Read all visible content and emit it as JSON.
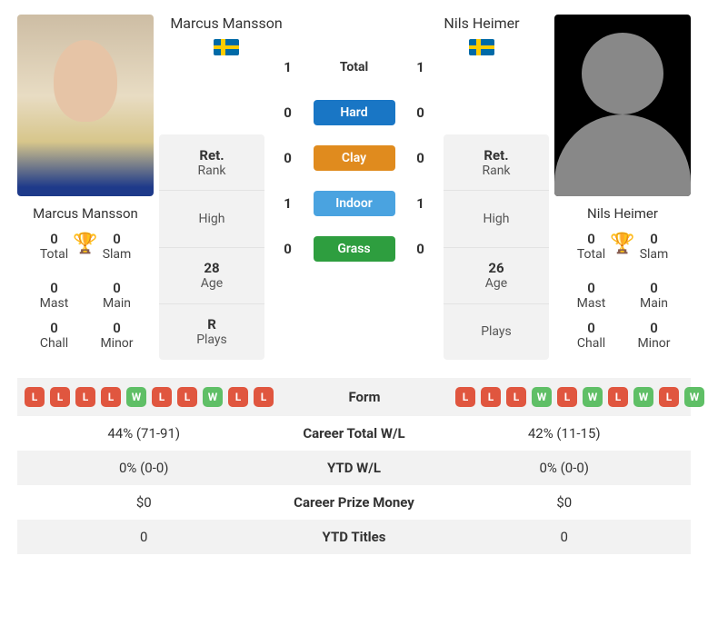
{
  "players": {
    "p1": {
      "name": "Marcus Mansson",
      "country": "SE",
      "titles": {
        "total": "0",
        "slam": "0",
        "mast": "0",
        "main": "0",
        "chall": "0",
        "minor": "0"
      },
      "stats": {
        "rank_val": "Ret.",
        "rank_lbl": "Rank",
        "high_val": "",
        "high_lbl": "High",
        "age_val": "28",
        "age_lbl": "Age",
        "plays_val": "R",
        "plays_lbl": "Plays"
      },
      "form": [
        "L",
        "L",
        "L",
        "L",
        "W",
        "L",
        "L",
        "W",
        "L",
        "L"
      ]
    },
    "p2": {
      "name": "Nils Heimer",
      "country": "SE",
      "titles": {
        "total": "0",
        "slam": "0",
        "mast": "0",
        "main": "0",
        "chall": "0",
        "minor": "0"
      },
      "stats": {
        "rank_val": "Ret.",
        "rank_lbl": "Rank",
        "high_val": "",
        "high_lbl": "High",
        "age_val": "26",
        "age_lbl": "Age",
        "plays_val": "",
        "plays_lbl": "Plays"
      },
      "form": [
        "L",
        "L",
        "L",
        "W",
        "L",
        "W",
        "L",
        "W",
        "L",
        "W"
      ]
    }
  },
  "title_labels": {
    "total": "Total",
    "slam": "Slam",
    "mast": "Mast",
    "main": "Main",
    "chall": "Chall",
    "minor": "Minor"
  },
  "h2h": {
    "total": {
      "label": "Total",
      "p1": "1",
      "p2": "1"
    },
    "hard": {
      "label": "Hard",
      "p1": "0",
      "p2": "0"
    },
    "clay": {
      "label": "Clay",
      "p1": "0",
      "p2": "0"
    },
    "indoor": {
      "label": "Indoor",
      "p1": "1",
      "p2": "1"
    },
    "grass": {
      "label": "Grass",
      "p1": "0",
      "p2": "0"
    }
  },
  "compare": {
    "form_label": "Form",
    "career_wl": {
      "label": "Career Total W/L",
      "p1": "44% (71-91)",
      "p2": "42% (11-15)"
    },
    "ytd_wl": {
      "label": "YTD W/L",
      "p1": "0% (0-0)",
      "p2": "0% (0-0)"
    },
    "prize": {
      "label": "Career Prize Money",
      "p1": "$0",
      "p2": "$0"
    },
    "ytd_titles": {
      "label": "YTD Titles",
      "p1": "0",
      "p2": "0"
    }
  },
  "colors": {
    "hard": "#1976c5",
    "clay": "#e08b1e",
    "indoor": "#4aa3e0",
    "grass": "#2e9e3f",
    "loss": "#e0563f",
    "win": "#5fbf66",
    "panel": "#f2f2f2",
    "trophy": "#5b7bd5"
  }
}
